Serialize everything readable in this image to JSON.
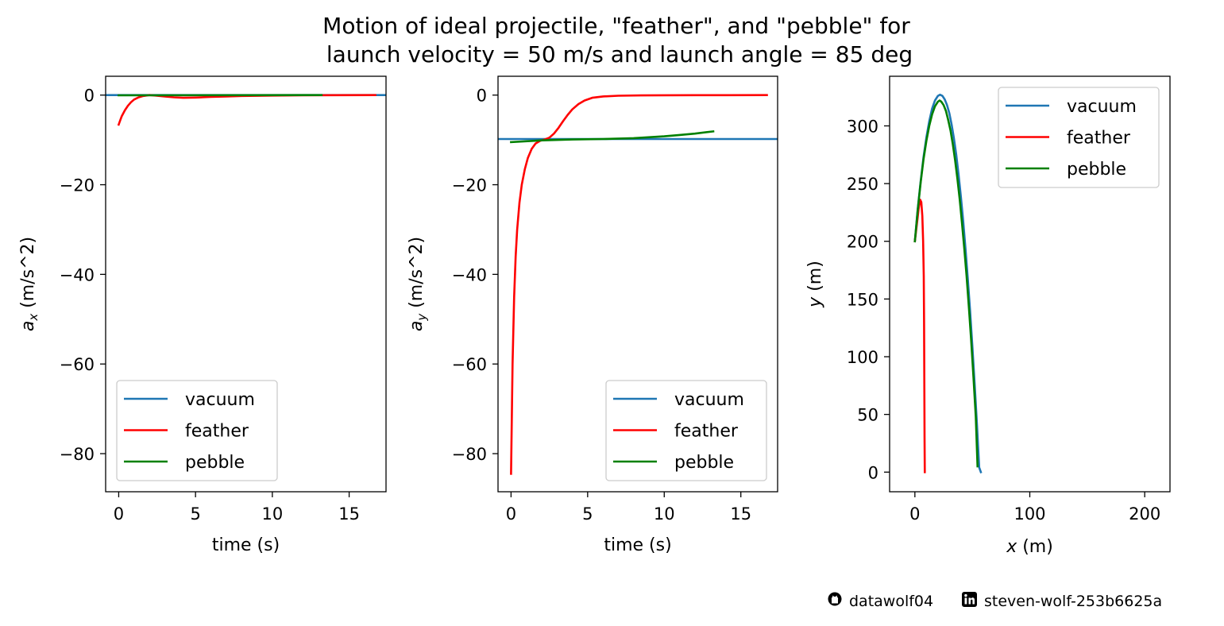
{
  "figure": {
    "title_line1": "Motion of ideal projectile, \"feather\", and \"pebble\" for",
    "title_line2": "launch velocity = 50 m/s and launch angle = 85 deg",
    "credits": {
      "github_icon": "github-icon",
      "github_user": "datawolf04",
      "linkedin_icon": "linkedin-icon",
      "linkedin_user": "steven-wolf-253b6625a"
    }
  },
  "colors": {
    "vacuum": "#1f77b4",
    "feather": "#ff0000",
    "pebble": "#008000"
  },
  "chart_data": [
    {
      "type": "line",
      "xlabel": "time (s)",
      "ylabel_var": "a",
      "ylabel_sub": "x",
      "ylabel_unit": " (m/s^2)",
      "xlim": [
        -0.85,
        17.4
      ],
      "ylim": [
        -88.5,
        4.2
      ],
      "xticks": [
        0,
        5,
        10,
        15
      ],
      "yticks": [
        0,
        -20,
        -40,
        -60,
        -80
      ],
      "legend_position": "lower-left",
      "series": [
        {
          "name": "vacuum",
          "color": "#1f77b4",
          "x": [
            -0.85,
            17.4
          ],
          "y": [
            0,
            0
          ]
        },
        {
          "name": "feather",
          "color": "#ff0000",
          "x": [
            0,
            0.1,
            0.2,
            0.4,
            0.6,
            0.8,
            1.0,
            1.3,
            1.6,
            2.0,
            2.4,
            3.0,
            3.6,
            4.2,
            5.0,
            6.0,
            7.0,
            8.0,
            10.0,
            12.0,
            14.0,
            16.7
          ],
          "y": [
            -6.6,
            -5.6,
            -4.7,
            -3.4,
            -2.4,
            -1.6,
            -1.0,
            -0.5,
            -0.2,
            0.0,
            -0.1,
            -0.3,
            -0.5,
            -0.6,
            -0.55,
            -0.4,
            -0.3,
            -0.2,
            -0.1,
            -0.05,
            -0.02,
            0
          ]
        },
        {
          "name": "pebble",
          "color": "#008000",
          "x": [
            0,
            13.2
          ],
          "y": [
            -0.05,
            0
          ]
        }
      ]
    },
    {
      "type": "line",
      "xlabel": "time (s)",
      "ylabel_var": "a",
      "ylabel_sub": "y",
      "ylabel_unit": " (m/s^2)",
      "xlim": [
        -0.85,
        17.4
      ],
      "ylim": [
        -88.5,
        4.2
      ],
      "xticks": [
        0,
        5,
        10,
        15
      ],
      "yticks": [
        0,
        -20,
        -40,
        -60,
        -80
      ],
      "legend_position": "lower-right",
      "series": [
        {
          "name": "vacuum",
          "color": "#1f77b4",
          "x": [
            -0.85,
            17.4
          ],
          "y": [
            -9.8,
            -9.8
          ]
        },
        {
          "name": "feather",
          "color": "#ff0000",
          "x": [
            0,
            0.1,
            0.2,
            0.3,
            0.4,
            0.55,
            0.7,
            0.9,
            1.1,
            1.35,
            1.6,
            1.9,
            2.2,
            2.5,
            2.8,
            3.1,
            3.4,
            3.7,
            4.0,
            4.4,
            4.8,
            5.3,
            6.0,
            7.0,
            8.5,
            10.0,
            12.0,
            14.0,
            16.7
          ],
          "y": [
            -84.5,
            -60.0,
            -45.0,
            -36.0,
            -30.0,
            -24.0,
            -20.0,
            -16.5,
            -14.0,
            -12.0,
            -10.8,
            -10.2,
            -9.9,
            -9.5,
            -8.6,
            -7.3,
            -5.8,
            -4.4,
            -3.2,
            -2.0,
            -1.2,
            -0.6,
            -0.3,
            -0.15,
            -0.08,
            -0.04,
            -0.02,
            -0.01,
            0
          ]
        },
        {
          "name": "pebble",
          "color": "#008000",
          "x": [
            0,
            2,
            4,
            6,
            8,
            10,
            11,
            12,
            13.2
          ],
          "y": [
            -10.5,
            -10.1,
            -9.9,
            -9.8,
            -9.6,
            -9.2,
            -8.9,
            -8.6,
            -8.1
          ]
        }
      ]
    },
    {
      "type": "line",
      "xlabel_var": "x",
      "xlabel_unit": " (m)",
      "ylabel_var": "y",
      "ylabel_unit": " (m)",
      "xlim": [
        -22,
        222
      ],
      "ylim": [
        -17,
        343
      ],
      "xticks": [
        0,
        100,
        200
      ],
      "yticks": [
        0,
        50,
        100,
        150,
        200,
        250,
        300
      ],
      "legend_position": "upper-right",
      "series": [
        {
          "name": "vacuum",
          "color": "#1f77b4",
          "x": [
            0,
            2.5,
            5,
            7.5,
            10,
            12.5,
            15,
            17.5,
            20,
            21.8,
            24,
            26,
            28,
            30,
            32,
            34,
            36,
            38,
            40,
            42,
            44,
            46,
            48,
            50,
            52,
            54,
            56,
            57.4
          ],
          "y": [
            200,
            228,
            252,
            273,
            290,
            304,
            315,
            322,
            326,
            327,
            326,
            323,
            318,
            311,
            301,
            289,
            275,
            258,
            239,
            218,
            194,
            168,
            140,
            109,
            76,
            41,
            4,
            0
          ]
        },
        {
          "name": "feather",
          "color": "#ff0000",
          "x": [
            0,
            2.3,
            3.2,
            4.6,
            5.6,
            6.5,
            7.2,
            7.7,
            8.0,
            8.2,
            8.4,
            8.6
          ],
          "y": [
            200,
            220,
            228,
            236,
            234,
            222,
            200,
            170,
            130,
            80,
            30,
            0
          ]
        },
        {
          "name": "pebble",
          "color": "#008000",
          "x": [
            0,
            2.5,
            5,
            7.5,
            10,
            12.5,
            15,
            17.5,
            20,
            21.5,
            23,
            25,
            27,
            29,
            31,
            33,
            35,
            37,
            39,
            41,
            43,
            45,
            47,
            49,
            51,
            53,
            54.5
          ],
          "y": [
            200,
            227,
            251,
            271,
            287,
            300,
            310,
            317,
            321,
            322,
            321,
            318,
            313,
            305,
            296,
            284,
            270,
            254,
            236,
            216,
            194,
            170,
            143,
            114,
            82,
            48,
            5
          ]
        }
      ]
    }
  ]
}
